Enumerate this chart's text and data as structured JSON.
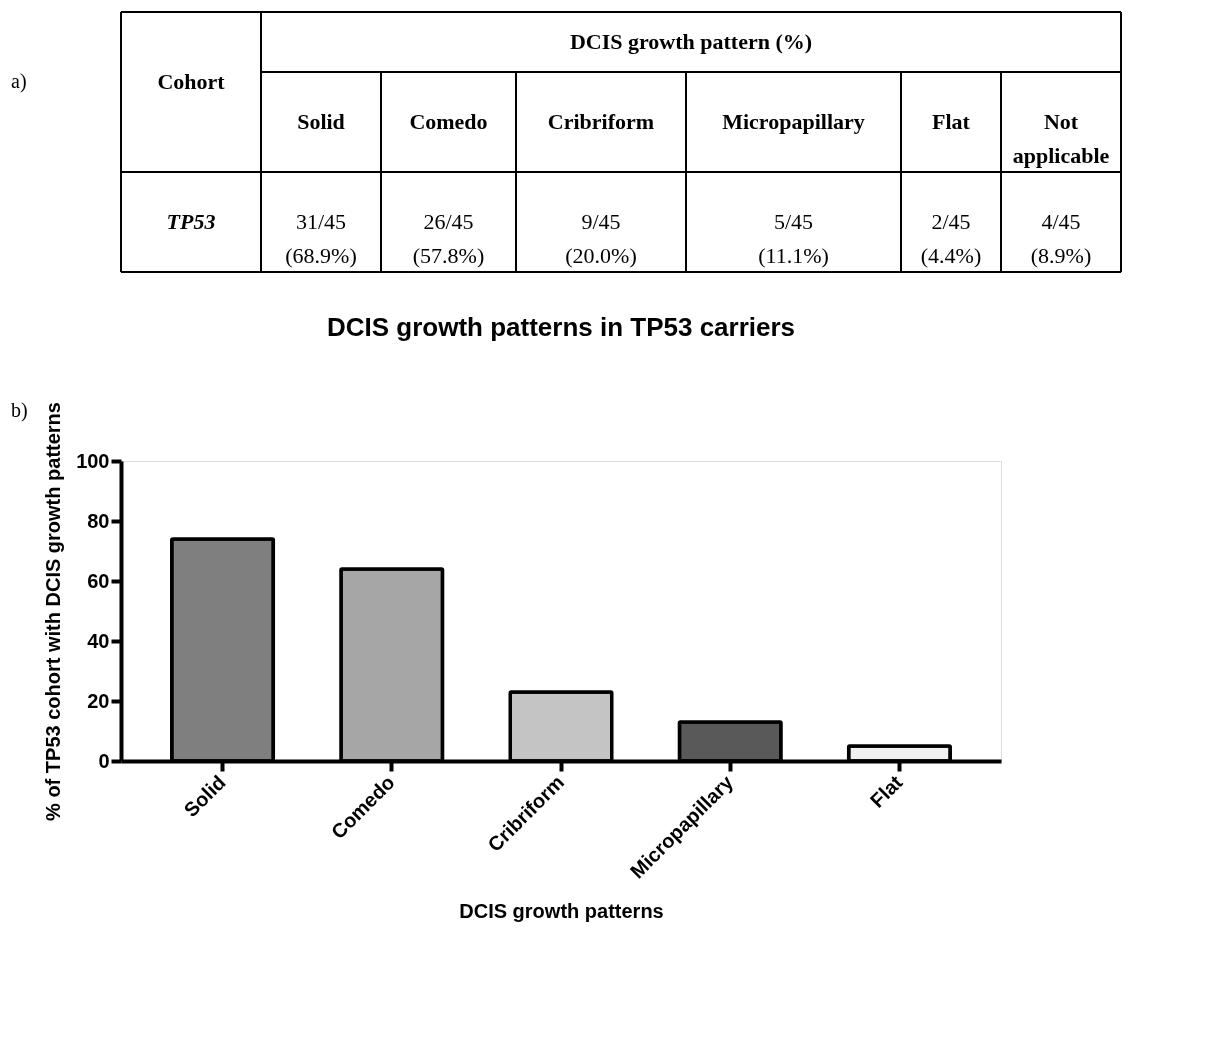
{
  "chart_data": [
    {
      "type": "other",
      "title": "DCIS growth pattern (%)",
      "ylabel": "Cohort",
      "categories": [
        "Solid",
        "Comedo",
        "Cribriform",
        "Micropapillary",
        "Flat",
        "Not applicable"
      ],
      "y_categories": [
        "TP53"
      ],
      "cell_labels": [
        [
          "31/45 (68.9%)",
          "26/45 (57.8%)",
          "9/45 (20.0%)",
          "5/45 (11.1%)",
          "2/45 (4.4%)",
          "4/45 (8.9%)"
        ]
      ],
      "annotations": [
        "a)"
      ]
    },
    {
      "type": "bar",
      "title": "DCIS growth patterns in TP53 carriers",
      "xlabel": "DCIS growth patterns",
      "ylabel": "% of TP53 cohort with DCIS growth patterns",
      "categories": [
        "Solid",
        "Comedo",
        "Cribriform",
        "Micropapillary",
        "Flat"
      ],
      "values": [
        74,
        64,
        23,
        13,
        5
      ],
      "colors": [
        "#7f7f7f",
        "#a6a6a6",
        "#c4c4c4",
        "#595959",
        "#f0f0f0"
      ],
      "ylim": [
        0,
        100
      ],
      "yticks": [
        0,
        20,
        40,
        60,
        80,
        100
      ],
      "annotations": [
        "b)"
      ]
    }
  ]
}
